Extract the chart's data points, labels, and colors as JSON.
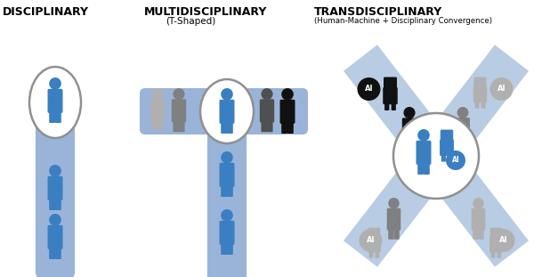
{
  "bg_color": "#ffffff",
  "title1": "DISCIPLINARY",
  "title2": "MULTIDISCIPLINARY",
  "title2b": "(T-Shaped)",
  "title3": "TRANSDISCIPLINARY",
  "title3b": "(Human-Machine + Disciplinary Convergence)",
  "blue": "#3a7fc1",
  "light_blue": "#9ab3d9",
  "light_blue2": "#b8cce4",
  "gray1": "#b0b0b0",
  "gray2": "#808080",
  "gray3": "#505050",
  "black": "#111111",
  "white": "#ffffff",
  "circle_edge": "#909090",
  "fig_w": 6.18,
  "fig_h": 3.11,
  "dpi": 100
}
